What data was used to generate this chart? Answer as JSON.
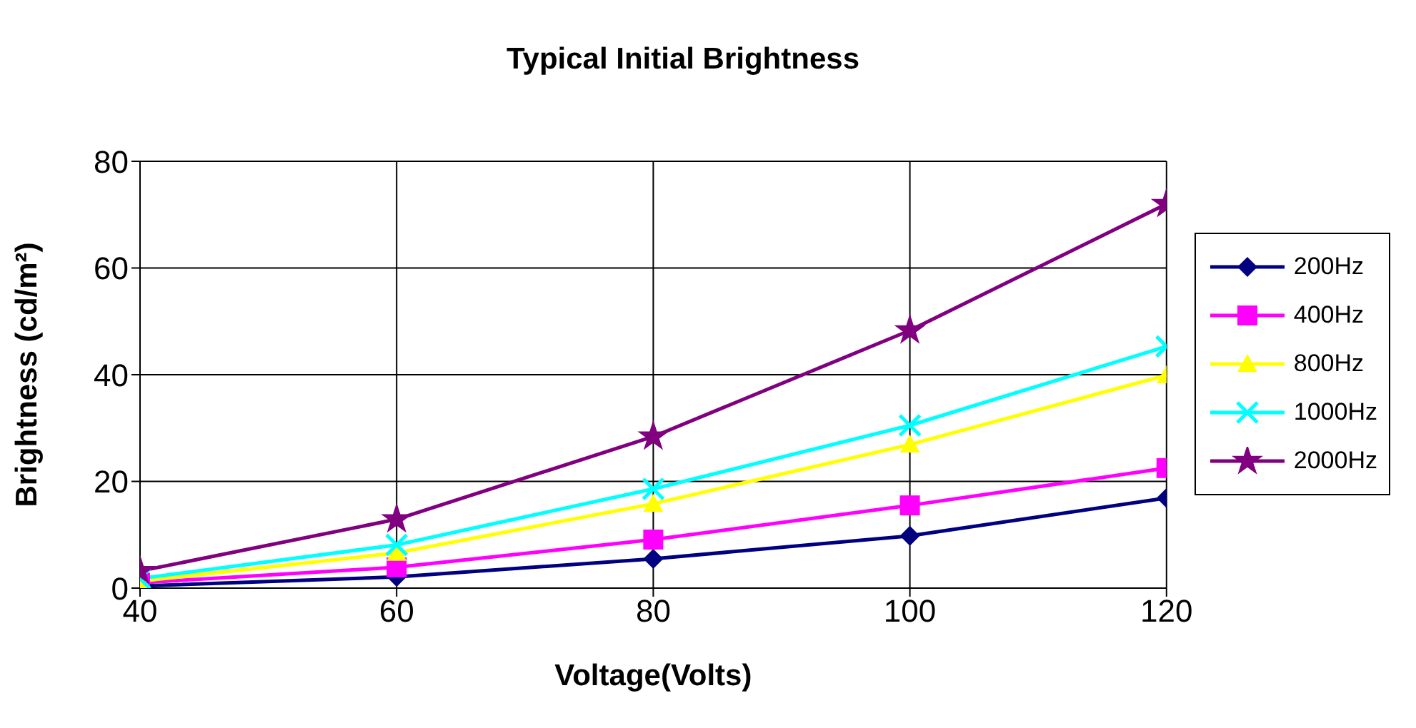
{
  "chart_data": {
    "type": "line",
    "title": "Typical Initial Brightness",
    "xlabel": "Voltage(Volts)",
    "ylabel": "Brightness (cd/m²)",
    "x": [
      40,
      60,
      80,
      100,
      120
    ],
    "xlim": [
      40,
      120
    ],
    "xticks": [
      40,
      60,
      80,
      100,
      120
    ],
    "ylim": [
      0,
      80
    ],
    "yticks": [
      0,
      20,
      40,
      60,
      80
    ],
    "grid": true,
    "legend": "right",
    "line_style": "solid",
    "series": [
      {
        "name": "200Hz",
        "color": "#000080",
        "marker": "diamond",
        "values": [
          0.4,
          2.1,
          5.5,
          9.8,
          16.9
        ]
      },
      {
        "name": "400Hz",
        "color": "#ff00ff",
        "marker": "square",
        "values": [
          1,
          3.9,
          9.1,
          15.5,
          22.5
        ]
      },
      {
        "name": "800Hz",
        "color": "#ffff00",
        "marker": "triangle",
        "values": [
          1.3,
          6.6,
          15.8,
          26.9,
          39.9
        ]
      },
      {
        "name": "1000Hz",
        "color": "#00ffff",
        "marker": "cross",
        "values": [
          1.8,
          8.1,
          18.6,
          30.5,
          45.3
        ]
      },
      {
        "name": "2000Hz",
        "color": "#800080",
        "marker": "star",
        "values": [
          3.2,
          12.9,
          28.4,
          48.3,
          72
        ]
      }
    ]
  }
}
